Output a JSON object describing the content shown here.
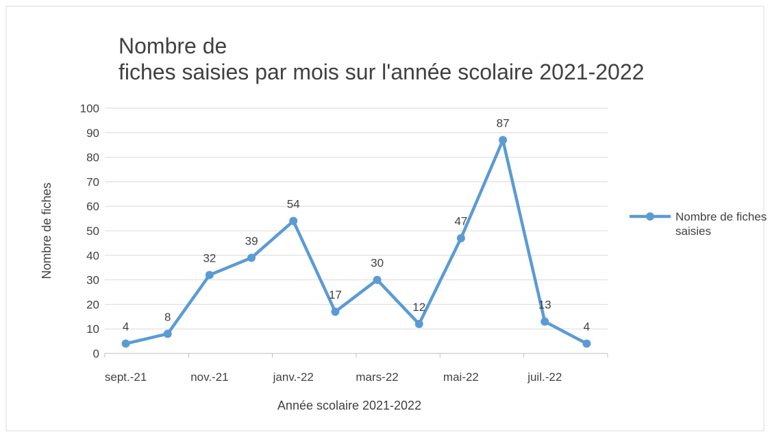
{
  "chart_data": {
    "type": "line",
    "title": [
      "Nombre de",
      "fiches saisies par mois sur l'année scolaire 2021-2022"
    ],
    "x_label": "Année scolaire 2021-2022",
    "y_label": "Nombre de fiches",
    "categories": [
      "sept.-21",
      null,
      "nov.-21",
      null,
      "janv.-22",
      null,
      "mars-22",
      null,
      "mai-22",
      null,
      "juil.-22",
      null
    ],
    "series": [
      {
        "name": "Nombre de fiches saisies",
        "color": "#5b9bd5",
        "values": [
          4,
          8,
          32,
          39,
          54,
          17,
          30,
          12,
          47,
          87,
          13,
          4
        ]
      }
    ],
    "ylim": [
      0,
      100
    ],
    "yticks": [
      0,
      10,
      20,
      30,
      40,
      50,
      60,
      70,
      80,
      90,
      100
    ],
    "grid": true,
    "legend": "right",
    "data_labels": true
  }
}
